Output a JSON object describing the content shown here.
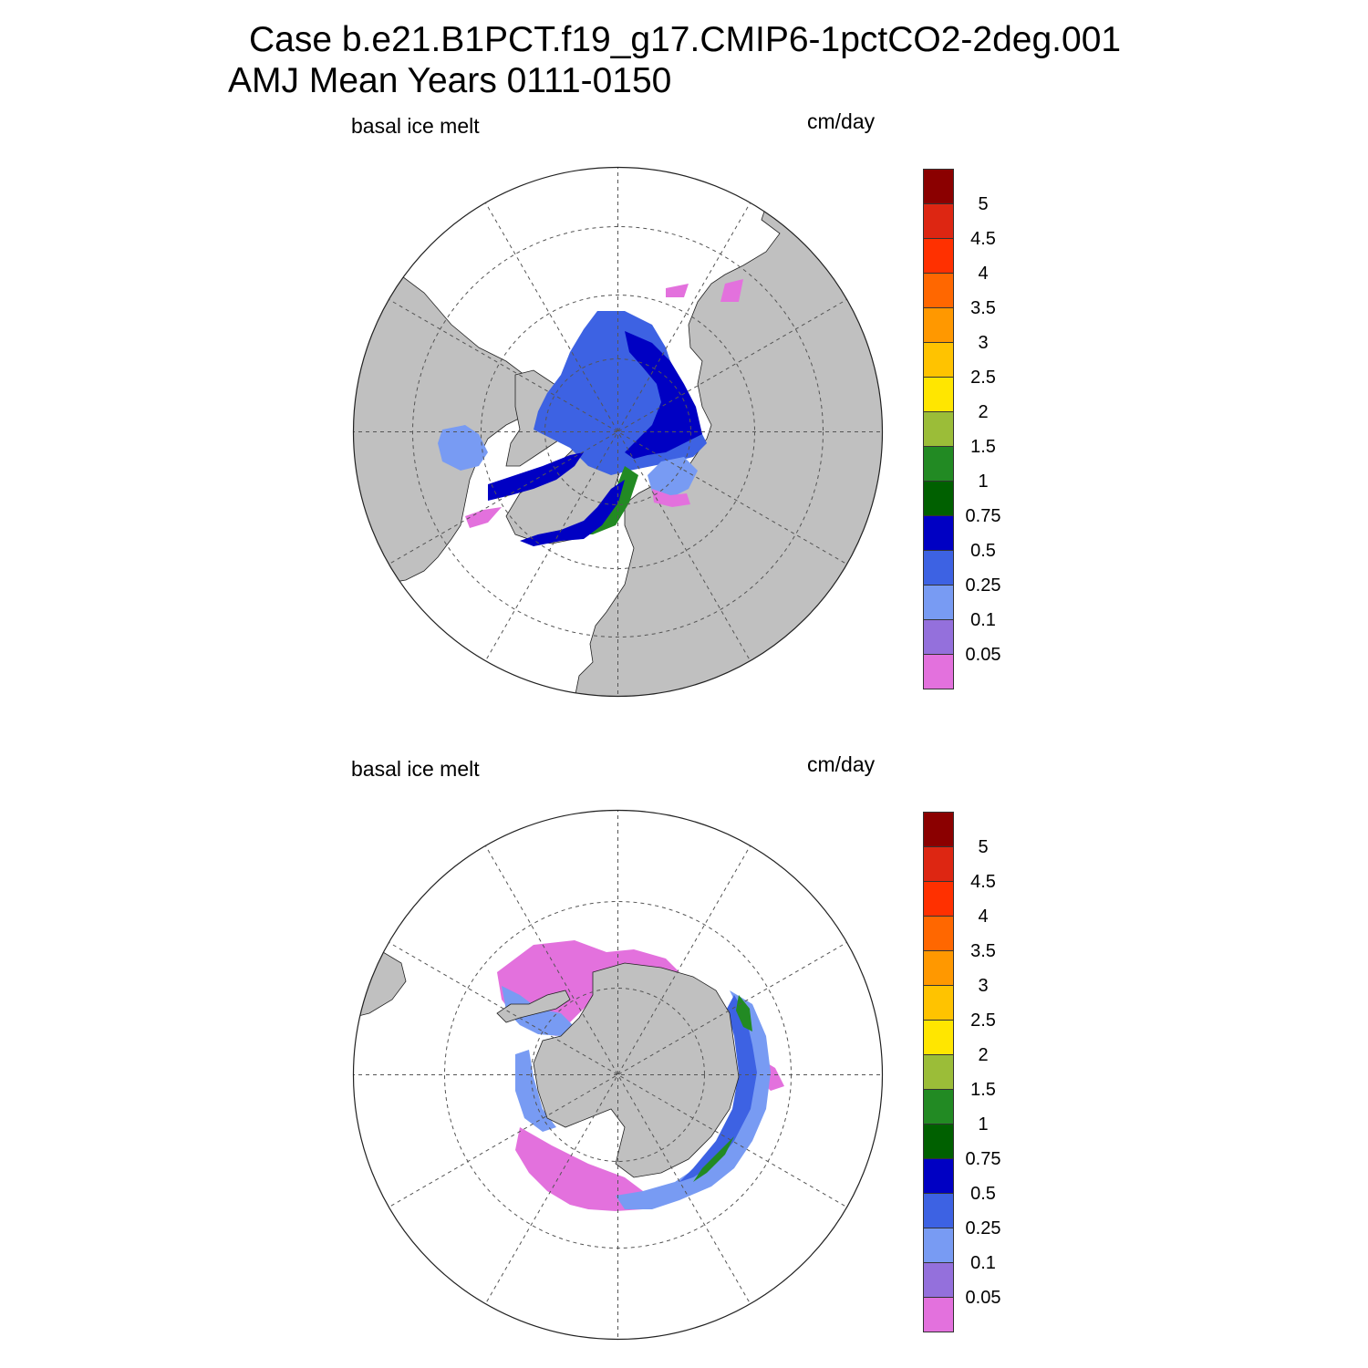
{
  "title": {
    "line1": "Case b.e21.B1PCT.f19_g17.CMIP6-1pctCO2-2deg.001",
    "line2": "AMJ Mean   Years 0111-0150"
  },
  "panels": [
    {
      "id": "north",
      "variable_label": "basal ice melt",
      "units_label": "cm/day"
    },
    {
      "id": "south",
      "variable_label": "basal ice melt",
      "units_label": "cm/day"
    }
  ],
  "colorbar": {
    "levels": [
      "0.05",
      "0.1",
      "0.25",
      "0.5",
      "0.75",
      "1",
      "1.5",
      "2",
      "2.5",
      "3",
      "3.5",
      "4",
      "4.5",
      "5"
    ],
    "colors": [
      "#e371dd",
      "#9470dc",
      "#789bf3",
      "#3d62e3",
      "#0000c3",
      "#006000",
      "#228a23",
      "#9bbd38",
      "#ffe600",
      "#ffc300",
      "#ff9800",
      "#ff6700",
      "#ff3000",
      "#dd2612",
      "#8b0000"
    ]
  },
  "map_colors": {
    "land": "#c0c0c0",
    "ocean": "#ffffff",
    "grid": "#555555"
  }
}
